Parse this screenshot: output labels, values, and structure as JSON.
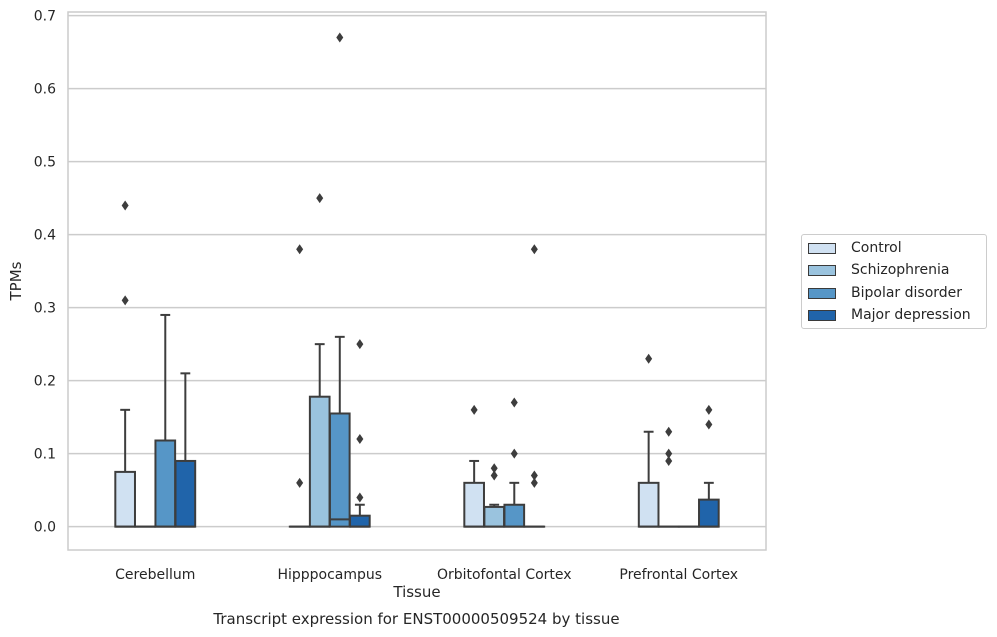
{
  "chart_data": {
    "type": "box",
    "xlabel": "Tissue",
    "ylabel": "TPMs",
    "caption": "Transcript expression for ENST00000509524 by tissue",
    "ylim": [
      -0.032,
      0.705
    ],
    "yticks": [
      0.0,
      0.1,
      0.2,
      0.3,
      0.4,
      0.5,
      0.6,
      0.7
    ],
    "ytick_labels": [
      "0.0",
      "0.1",
      "0.2",
      "0.3",
      "0.4",
      "0.5",
      "0.6",
      "0.7"
    ],
    "grid": true,
    "legend_position": "right",
    "categories": [
      "Cerebellum",
      "Hipppocampus",
      "Orbitofontal Cortex",
      "Prefrontal Cortex"
    ],
    "series": [
      {
        "name": "Control",
        "color": "#d0e1f2",
        "boxes": [
          {
            "whislo": 0.0,
            "q1": 0.0,
            "med": 0.0,
            "q3": 0.075,
            "whishi": 0.16,
            "fliers": [
              0.31,
              0.44
            ]
          },
          {
            "whislo": 0.0,
            "q1": 0.0,
            "med": 0.0,
            "q3": 0.0,
            "whishi": 0.0,
            "fliers": [
              0.06,
              0.38
            ]
          },
          {
            "whislo": 0.0,
            "q1": 0.0,
            "med": 0.0,
            "q3": 0.06,
            "whishi": 0.09,
            "fliers": [
              0.16
            ]
          },
          {
            "whislo": 0.0,
            "q1": 0.0,
            "med": 0.0,
            "q3": 0.06,
            "whishi": 0.13,
            "fliers": [
              0.23
            ]
          }
        ]
      },
      {
        "name": "Schizophrenia",
        "color": "#9ac3de",
        "boxes": [
          {
            "whislo": 0.0,
            "q1": 0.0,
            "med": 0.0,
            "q3": 0.0,
            "whishi": 0.0,
            "fliers": []
          },
          {
            "whislo": 0.0,
            "q1": 0.0,
            "med": 0.0,
            "q3": 0.178,
            "whishi": 0.25,
            "fliers": [
              0.45
            ]
          },
          {
            "whislo": 0.0,
            "q1": 0.0,
            "med": 0.0,
            "q3": 0.027,
            "whishi": 0.03,
            "fliers": [
              0.07,
              0.08
            ]
          },
          {
            "whislo": 0.0,
            "q1": 0.0,
            "med": 0.0,
            "q3": 0.0,
            "whishi": 0.0,
            "fliers": [
              0.09,
              0.1,
              0.13
            ]
          }
        ]
      },
      {
        "name": "Bipolar disorder",
        "color": "#5696c7",
        "boxes": [
          {
            "whislo": 0.0,
            "q1": 0.0,
            "med": 0.0,
            "q3": 0.118,
            "whishi": 0.29,
            "fliers": []
          },
          {
            "whislo": 0.0,
            "q1": 0.0,
            "med": 0.01,
            "q3": 0.155,
            "whishi": 0.26,
            "fliers": [
              0.67
            ]
          },
          {
            "whislo": 0.0,
            "q1": 0.0,
            "med": 0.0,
            "q3": 0.03,
            "whishi": 0.06,
            "fliers": [
              0.1,
              0.17
            ]
          },
          {
            "whislo": 0.0,
            "q1": 0.0,
            "med": 0.0,
            "q3": 0.0,
            "whishi": 0.0,
            "fliers": []
          }
        ]
      },
      {
        "name": "Major depression",
        "color": "#2064aa",
        "boxes": [
          {
            "whislo": 0.0,
            "q1": 0.0,
            "med": 0.0,
            "q3": 0.09,
            "whishi": 0.21,
            "fliers": []
          },
          {
            "whislo": 0.0,
            "q1": 0.0,
            "med": 0.0,
            "q3": 0.015,
            "whishi": 0.03,
            "fliers": [
              0.04,
              0.12,
              0.25
            ]
          },
          {
            "whislo": 0.0,
            "q1": 0.0,
            "med": 0.0,
            "q3": 0.0,
            "whishi": 0.0,
            "fliers": [
              0.06,
              0.07,
              0.38
            ]
          },
          {
            "whislo": 0.0,
            "q1": 0.0,
            "med": 0.0,
            "q3": 0.037,
            "whishi": 0.06,
            "fliers": [
              0.14,
              0.16
            ]
          }
        ]
      }
    ]
  }
}
